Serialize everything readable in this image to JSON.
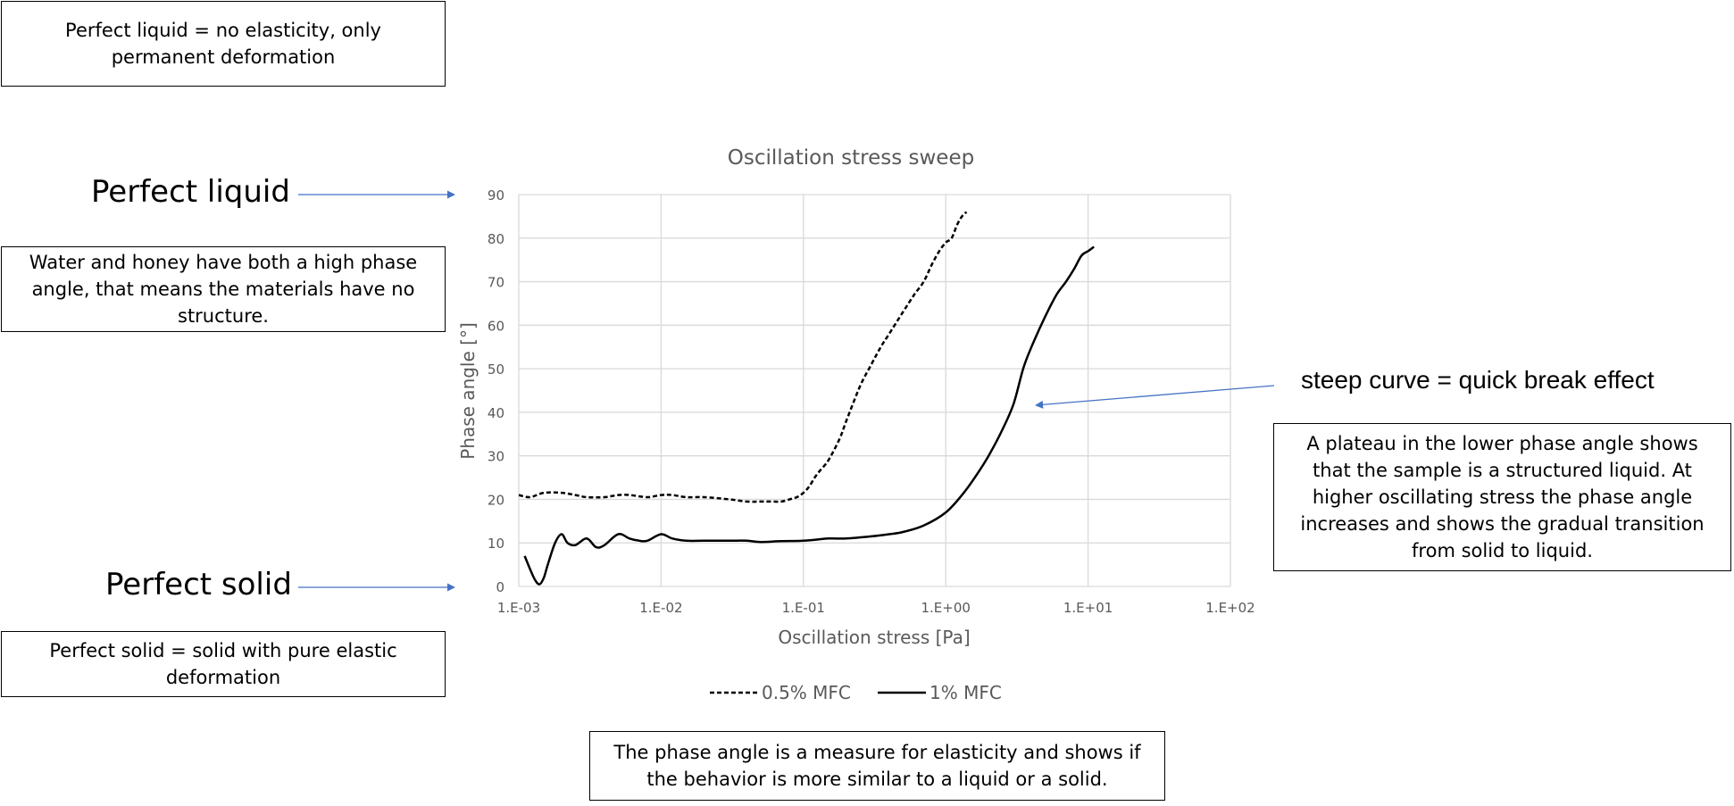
{
  "annotations": {
    "liquid_definition": "Perfect liquid = no elasticity, only permanent deformation",
    "perfect_liquid": "Perfect liquid",
    "water_honey": "Water and honey have both a high phase angle, that means the materials have no structure.",
    "perfect_solid": "Perfect solid",
    "solid_definition": "Perfect solid = solid with pure elastic deformation",
    "steep_curve": "steep curve = quick break effect",
    "plateau_note": "A plateau in the lower phase angle shows that the sample is a structured liquid. At higher oscillating stress the phase angle increases and shows the gradual transition from solid to liquid.",
    "phase_angle_note": "The phase angle is a measure for elasticity and shows if the behavior is more similar to a liquid or a solid."
  },
  "colors": {
    "arrow": "#4472C4",
    "grid": "#D9D9D9",
    "axis_text": "#595959",
    "series": "#000000"
  },
  "chart_data": {
    "type": "line",
    "title": "Oscillation stress sweep",
    "xlabel": "Oscillation stress [Pa]",
    "ylabel": "Phase angle [°]",
    "xscale": "log",
    "xlim": [
      0.001,
      100
    ],
    "ylim": [
      0,
      90
    ],
    "xticks": [
      "1.E-03",
      "1.E-02",
      "1.E-01",
      "1.E+00",
      "1.E+01",
      "1.E+02"
    ],
    "yticks": [
      "0",
      "10",
      "20",
      "30",
      "40",
      "50",
      "60",
      "70",
      "80",
      "90"
    ],
    "grid": true,
    "legend_position": "bottom",
    "series": [
      {
        "name": "0.5% MFC",
        "style": "dashed",
        "x": [
          0.001,
          0.0012,
          0.0015,
          0.002,
          0.0025,
          0.003,
          0.004,
          0.005,
          0.006,
          0.008,
          0.01,
          0.012,
          0.015,
          0.02,
          0.03,
          0.04,
          0.05,
          0.06,
          0.07,
          0.08,
          0.09,
          0.1,
          0.11,
          0.12,
          0.13,
          0.15,
          0.18,
          0.2,
          0.25,
          0.3,
          0.35,
          0.4,
          0.5,
          0.6,
          0.7,
          0.8,
          0.9,
          1.0,
          1.1,
          1.2,
          1.3,
          1.4
        ],
        "y": [
          21,
          20.5,
          21.5,
          21.5,
          21,
          20.5,
          20.5,
          21,
          21,
          20.5,
          21,
          21,
          20.5,
          20.5,
          20,
          19.5,
          19.5,
          19.5,
          19.5,
          20,
          20.5,
          21.5,
          23,
          25,
          26.5,
          29,
          34,
          38,
          46,
          51,
          55,
          58,
          63,
          67,
          70,
          74,
          77,
          79,
          80,
          83,
          85,
          86
        ]
      },
      {
        "name": "1% MFC",
        "style": "solid",
        "x": [
          0.0011,
          0.0012,
          0.0013,
          0.0014,
          0.0015,
          0.0016,
          0.0018,
          0.002,
          0.0022,
          0.0025,
          0.003,
          0.0035,
          0.004,
          0.005,
          0.006,
          0.007,
          0.008,
          0.01,
          0.012,
          0.015,
          0.02,
          0.03,
          0.04,
          0.05,
          0.07,
          0.1,
          0.15,
          0.2,
          0.3,
          0.4,
          0.5,
          0.7,
          1.0,
          1.3,
          1.6,
          2.0,
          2.5,
          3.0,
          3.5,
          4.0,
          5.0,
          6.0,
          7.0,
          8.0,
          9.0,
          10.0,
          11.0
        ],
        "y": [
          7,
          4,
          1.5,
          0.5,
          2,
          5,
          10,
          12,
          10,
          9.5,
          11,
          9,
          9.5,
          12,
          11,
          10.5,
          10.5,
          12,
          11,
          10.5,
          10.5,
          10.5,
          10.5,
          10.2,
          10.4,
          10.5,
          11,
          11,
          11.5,
          12,
          12.5,
          14,
          17,
          21,
          25,
          30,
          36,
          42,
          50,
          55,
          62,
          67,
          70,
          73,
          76,
          77,
          78
        ]
      }
    ]
  }
}
